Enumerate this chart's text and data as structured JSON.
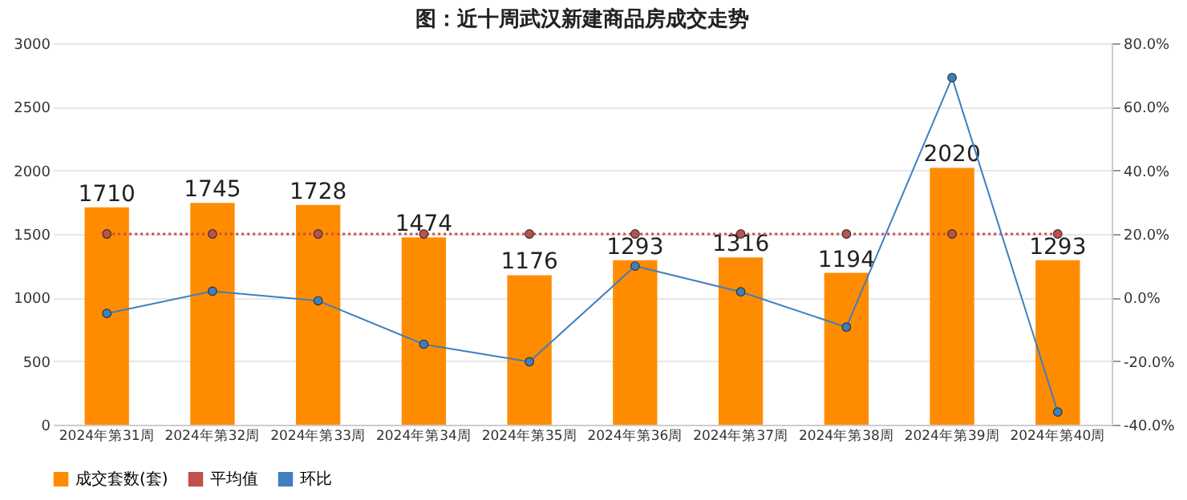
{
  "chart_data": {
    "type": "bar",
    "title": "图：近十周武汉新建商品房成交走势",
    "categories": [
      "2024年第31周",
      "2024年第32周",
      "2024年第33周",
      "2024年第34周",
      "2024年第35周",
      "2024年第36周",
      "2024年第37周",
      "2024年第38周",
      "2024年第39周",
      "2024年第40周"
    ],
    "series": [
      {
        "name": "成交套数(套)",
        "color": "#ff8c00",
        "values": [
          1710,
          1745,
          1728,
          1474,
          1176,
          1293,
          1316,
          1194,
          2020,
          1293
        ],
        "value_labels": [
          "1710",
          "1745",
          "1728",
          "1474",
          "1176",
          "1293",
          "1316",
          "1194",
          "2020",
          "1293"
        ]
      },
      {
        "name": "平均值",
        "type": "line",
        "color": "#c0504d",
        "line_style": "dotted",
        "marker": "circle",
        "values": [
          1500,
          1500,
          1500,
          1500,
          1500,
          1500,
          1500,
          1500,
          1500,
          1500
        ]
      },
      {
        "name": "环比",
        "type": "line",
        "axis": "y2",
        "color": "#3f7fc0",
        "line_style": "solid",
        "marker": "circle",
        "values": [
          -5,
          2,
          -1,
          -14.7,
          -20.2,
          9.9,
          1.8,
          -9.3,
          69.2,
          -36
        ]
      }
    ],
    "ylim": [
      0,
      3000
    ],
    "yticks": [
      0,
      500,
      1000,
      1500,
      2000,
      2500,
      3000
    ],
    "y2lim": [
      -40,
      80
    ],
    "y2ticks": [
      {
        "value": -40,
        "label": "-40.0%"
      },
      {
        "value": -20,
        "label": "-20.0%"
      },
      {
        "value": 0,
        "label": "0.0%"
      },
      {
        "value": 20,
        "label": "20.0%"
      },
      {
        "value": 40,
        "label": "40.0%"
      },
      {
        "value": 60,
        "label": "60.0%"
      },
      {
        "value": 80,
        "label": "80.0%"
      }
    ],
    "grid": "y",
    "legend": "bottom"
  }
}
